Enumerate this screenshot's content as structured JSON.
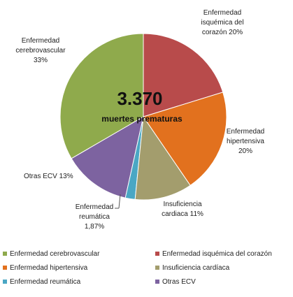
{
  "chart_data": {
    "type": "pie",
    "annotations": [
      "3.370",
      "muertes prematuras"
    ],
    "categories": [
      "Enfermedad cerebrovascular",
      "Enfermedad isquémica del corazón",
      "Enfermedad hipertensiva",
      "Insuficiencia cardíaca",
      "Enfermedad reumática",
      "Otras ECV"
    ],
    "values": [
      33,
      20,
      20,
      11,
      1.87,
      13
    ],
    "value_labels": [
      "Enfermedad cerebrovascular 33%",
      "Enfermedad isquémica del corazón 20%",
      "Enfermedad hipertensiva 20%",
      "Insuficiencia cardiaca 11%",
      "Enfermedad reumática 1,87%",
      "Otras ECV 13%"
    ],
    "colors": [
      "#8faa4c",
      "#b84b4b",
      "#e2711e",
      "#a39d6d",
      "#4aa7c4",
      "#7d63a0"
    ],
    "legend": "bottom"
  }
}
